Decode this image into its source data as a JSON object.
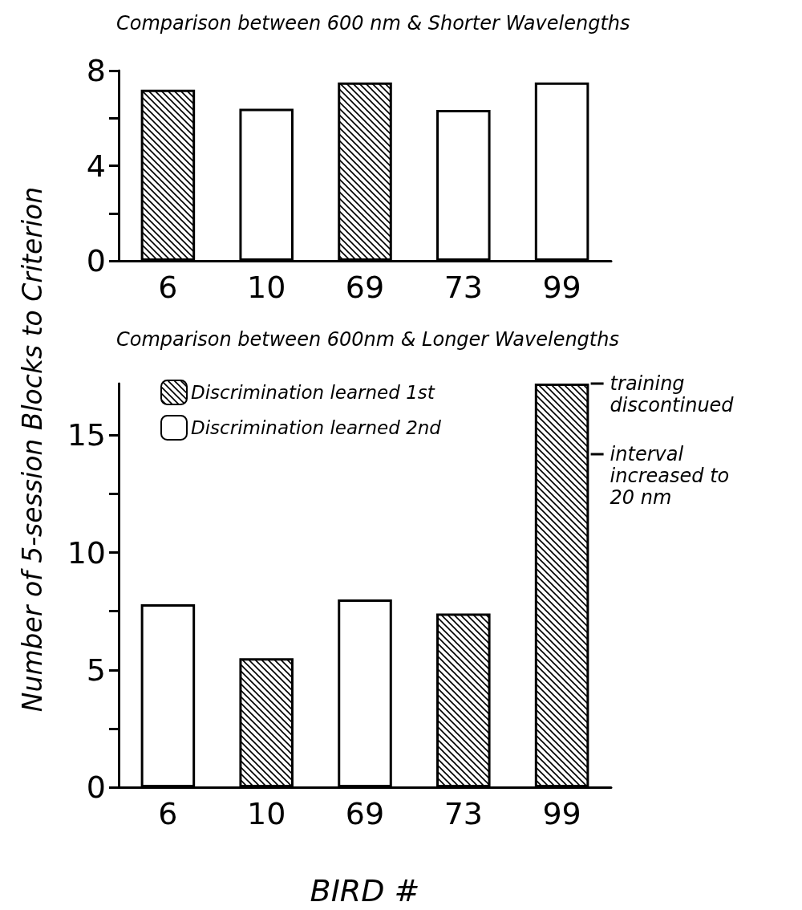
{
  "chart_data": [
    {
      "type": "bar",
      "title": "Comparison between 600 nm & Shorter Wavelengths",
      "ylabel": "Number of 5-session Blocks to Criterion",
      "categories": [
        "6",
        "10",
        "69",
        "73",
        "99"
      ],
      "series": [
        {
          "color": "#000000",
          "values": [
            7.2,
            null,
            7.5,
            null,
            null
          ]
        },
        {
          "color": "#ffffff",
          "values": [
            null,
            6.4,
            null,
            6.35,
            7.5
          ]
        }
      ],
      "ylim": [
        0,
        8
      ],
      "yticks": [
        0,
        {
          "value": 2,
          "label": null
        },
        4,
        {
          "value": 6,
          "label": null
        },
        8
      ],
      "grid": false,
      "legend": false
    },
    {
      "type": "bar",
      "title": "Comparison between 600nm & Longer Wavelengths",
      "xlabel": "BIRD #",
      "categories": [
        "6",
        "10",
        "69",
        "73",
        "99"
      ],
      "series": [
        {
          "name": "Discrimination learned 1st",
          "color": "#000000",
          "values": [
            null,
            5.5,
            null,
            7.4,
            17.2
          ]
        },
        {
          "name": "Discrimination learned 2nd",
          "color": "#ffffff",
          "values": [
            7.8,
            null,
            8.0,
            null,
            null
          ]
        }
      ],
      "ylim": [
        0,
        17.2
      ],
      "yticks": [
        0,
        {
          "value": 2.5,
          "label": null
        },
        5,
        {
          "value": 7.5,
          "label": null
        },
        10,
        {
          "value": 12.5,
          "label": null
        },
        15
      ],
      "grid": false,
      "legend": "top left",
      "annotations": [
        {
          "text": "training discontinued",
          "x": "99",
          "y": 17.2
        },
        "interval increased to 20 nm"
      ]
    }
  ]
}
